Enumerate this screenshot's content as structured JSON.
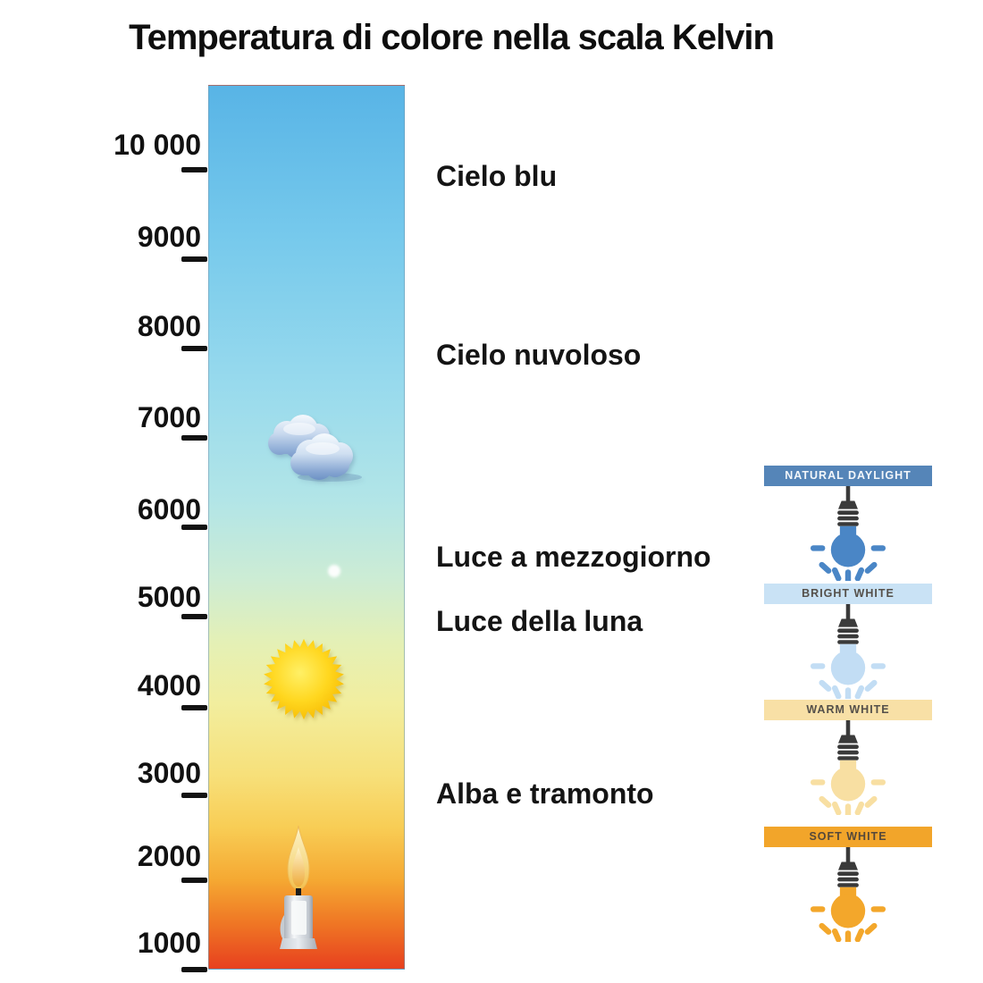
{
  "title": "Temperatura di colore nella scala Kelvin",
  "chart_data": {
    "type": "scale",
    "title": "Temperatura di colore nella scala Kelvin",
    "axis": {
      "unit": "K",
      "min": 1000,
      "max": 10000,
      "ticks": [
        10000,
        9000,
        8000,
        7000,
        6000,
        5000,
        4000,
        3000,
        2000,
        1000
      ],
      "tick_labels": [
        "10 000",
        "9000",
        "8000",
        "7000",
        "6000",
        "5000",
        "4000",
        "3000",
        "2000",
        "1000"
      ]
    },
    "gradient_stops": [
      {
        "pos": 0.0,
        "color": "#58b4e6"
      },
      {
        "pos": 0.17,
        "color": "#76c9ec"
      },
      {
        "pos": 0.34,
        "color": "#98daed"
      },
      {
        "pos": 0.47,
        "color": "#b2e5e7"
      },
      {
        "pos": 0.56,
        "color": "#cdecd4"
      },
      {
        "pos": 0.63,
        "color": "#e4f0b6"
      },
      {
        "pos": 0.7,
        "color": "#f2ee9e"
      },
      {
        "pos": 0.78,
        "color": "#f7e07a"
      },
      {
        "pos": 0.84,
        "color": "#f8cd55"
      },
      {
        "pos": 0.9,
        "color": "#f5a832"
      },
      {
        "pos": 0.95,
        "color": "#ef7524"
      },
      {
        "pos": 1.0,
        "color": "#e7401f"
      }
    ],
    "annotations": [
      {
        "label": "Cielo blu",
        "approx_kelvin": 9900
      },
      {
        "label": "Cielo nuvoloso",
        "approx_kelvin": 7900
      },
      {
        "label": "Luce a mezzogiorno",
        "approx_kelvin": 5650
      },
      {
        "label": "Luce della luna",
        "approx_kelvin": 4900
      },
      {
        "label": "Alba e tramonto",
        "approx_kelvin": 3000
      }
    ],
    "icon_markers": [
      {
        "icon": "cloud-icon",
        "approx_kelvin": 6900
      },
      {
        "icon": "moon-dot-icon",
        "approx_kelvin": 5450
      },
      {
        "icon": "sun-icon",
        "approx_kelvin": 4300
      },
      {
        "icon": "candle-icon",
        "approx_kelvin": 1800
      }
    ]
  },
  "panels": [
    {
      "label": "NATURAL DAYLIGHT",
      "banner_color": "#5585b8",
      "text_color": "#f2f6fa",
      "bulb_color": "#4a86c6"
    },
    {
      "label": "BRIGHT WHITE",
      "banner_color": "#c9e2f5",
      "text_color": "#55504a",
      "bulb_color": "#c2ddf4"
    },
    {
      "label": "WARM WHITE",
      "banner_color": "#f8e0a6",
      "text_color": "#55504a",
      "bulb_color": "#f8dfa2"
    },
    {
      "label": "SOFT WHITE",
      "banner_color": "#f2a52a",
      "text_color": "#55483a",
      "bulb_color": "#f3a72b"
    }
  ],
  "bulb_socket_color": "#3a3a3a",
  "icon_colors": {
    "sun_inner": "#fff066",
    "sun_outer": "#f6b800",
    "cloud_top": "#f4f9fd",
    "cloud_bottom": "#6b90c4",
    "flame_outer": "#f3c04e",
    "flame_core": "#eda83a",
    "candle_body": "#e8ebef",
    "moon_dot": "#ffffff"
  }
}
